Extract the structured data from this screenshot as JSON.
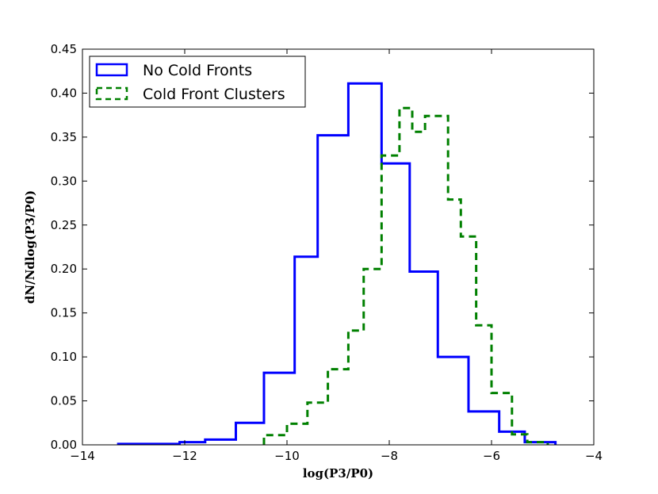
{
  "chart_data": {
    "type": "line",
    "subtype": "step-histogram",
    "title": "",
    "xlabel": "log(P3/P0)",
    "ylabel": "dN/Ndlog(P3/P0)",
    "xlim": [
      -14,
      -4
    ],
    "ylim": [
      0,
      0.45
    ],
    "xticks": [
      -14,
      -12,
      -10,
      -8,
      -6,
      -4
    ],
    "xtick_labels": [
      "−14",
      "−12",
      "−10",
      "−8",
      "−6",
      "−4"
    ],
    "yticks": [
      0.0,
      0.05,
      0.1,
      0.15,
      0.2,
      0.25,
      0.3,
      0.35,
      0.4,
      0.45
    ],
    "ytick_labels": [
      "0.00",
      "0.05",
      "0.10",
      "0.15",
      "0.20",
      "0.25",
      "0.30",
      "0.35",
      "0.40",
      "0.45"
    ],
    "grid": false,
    "legend_position": "top-left",
    "series": [
      {
        "name": "No Cold Fronts",
        "color": "#0000ff",
        "linestyle": "solid",
        "bin_edges": [
          -13.3,
          -12.1,
          -11.6,
          -11.0,
          -10.45,
          -9.85,
          -9.4,
          -8.8,
          -8.15,
          -7.6,
          -7.05,
          -6.45,
          -5.85,
          -5.35,
          -4.75
        ],
        "values": [
          0.001,
          0.003,
          0.006,
          0.025,
          0.082,
          0.214,
          0.352,
          0.411,
          0.32,
          0.197,
          0.1,
          0.038,
          0.015,
          0.003
        ]
      },
      {
        "name": "Cold Front Clusters",
        "color": "#008000",
        "linestyle": "dashed",
        "bin_edges": [
          -10.45,
          -10.0,
          -9.6,
          -9.2,
          -8.8,
          -8.5,
          -8.15,
          -7.8,
          -7.55,
          -7.3,
          -7.05,
          -6.85,
          -6.6,
          -6.3,
          -6.0,
          -5.6,
          -5.3,
          -4.9
        ],
        "values": [
          0.011,
          0.024,
          0.048,
          0.086,
          0.13,
          0.2,
          0.329,
          0.383,
          0.356,
          0.374,
          0.374,
          0.279,
          0.237,
          0.136,
          0.059,
          0.012,
          0.003
        ]
      }
    ]
  }
}
